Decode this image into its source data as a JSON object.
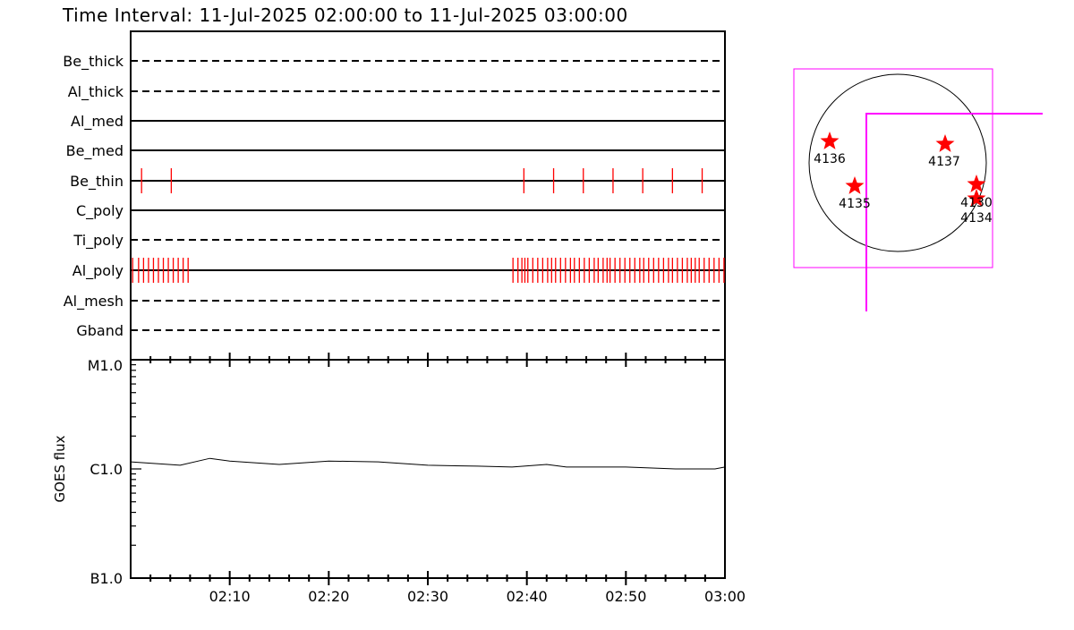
{
  "title": "Time Interval: 11-Jul-2025 02:00:00 to 11-Jul-2025 03:00:00",
  "colors": {
    "exposure": "#ff0000",
    "fov": "#ff00ff",
    "axes": "#000000"
  },
  "chart_data": [
    {
      "type": "scatter",
      "description_kind": "filter timeline",
      "x_unit": "minutes after 02:00",
      "xlim": [
        0,
        60
      ],
      "rows": [
        {
          "name": "Be_thick",
          "style": "dashed",
          "times": []
        },
        {
          "name": "Al_thick",
          "style": "dashed",
          "times": []
        },
        {
          "name": "Al_med",
          "style": "solid",
          "times": []
        },
        {
          "name": "Be_med",
          "style": "solid",
          "times": []
        },
        {
          "name": "Be_thin",
          "style": "solid",
          "times": [
            1.1,
            4.1,
            39.7,
            42.7,
            45.7,
            48.7,
            51.7,
            54.7,
            57.7
          ]
        },
        {
          "name": "C_poly",
          "style": "solid",
          "times": []
        },
        {
          "name": "Ti_poly",
          "style": "dashed",
          "times": []
        },
        {
          "name": "Al_poly",
          "style": "solid",
          "times": [
            0.2,
            0.8,
            1.3,
            1.8,
            2.3,
            2.8,
            3.3,
            3.8,
            4.3,
            4.8,
            5.3,
            5.8,
            38.6,
            39.1,
            39.5,
            39.8,
            40.1,
            40.6,
            41.1,
            41.6,
            42.1,
            42.5,
            42.9,
            43.4,
            43.9,
            44.4,
            44.8,
            45.3,
            45.8,
            46.3,
            46.8,
            47.2,
            47.7,
            48.1,
            48.4,
            48.9,
            49.4,
            49.9,
            50.4,
            50.9,
            51.4,
            51.8,
            52.3,
            52.8,
            53.3,
            53.8,
            54.3,
            54.7,
            55.2,
            55.7,
            56.2,
            56.6,
            57.0,
            57.4,
            57.9,
            58.4,
            58.9,
            59.4,
            59.9
          ]
        },
        {
          "name": "Al_mesh",
          "style": "dashed",
          "times": []
        },
        {
          "name": "Gband",
          "style": "dashed",
          "times": []
        }
      ]
    },
    {
      "type": "line",
      "ylabel": "GOES flux",
      "yscale": "log",
      "ylim": [
        1e-07,
        1e-05
      ],
      "y_tick_labels": [
        "B1.0",
        "C1.0",
        "M1.0"
      ],
      "x_tick_labels": [
        "02:10",
        "02:20",
        "02:30",
        "02:40",
        "02:50",
        "03:00"
      ],
      "x": [
        0,
        5,
        8,
        10,
        15,
        20,
        25,
        30,
        35,
        38.5,
        42,
        44,
        50,
        55,
        59,
        60
      ],
      "y": [
        1.16e-06,
        1.08e-06,
        1.25e-06,
        1.18e-06,
        1.1e-06,
        1.18e-06,
        1.16e-06,
        1.08e-06,
        1.06e-06,
        1.04e-06,
        1.1e-06,
        1.04e-06,
        1.04e-06,
        1e-06,
        1e-06,
        1.04e-06
      ]
    }
  ],
  "sun_map": {
    "active_regions": [
      "4136",
      "4137",
      "4135",
      "4130",
      "4134"
    ]
  }
}
